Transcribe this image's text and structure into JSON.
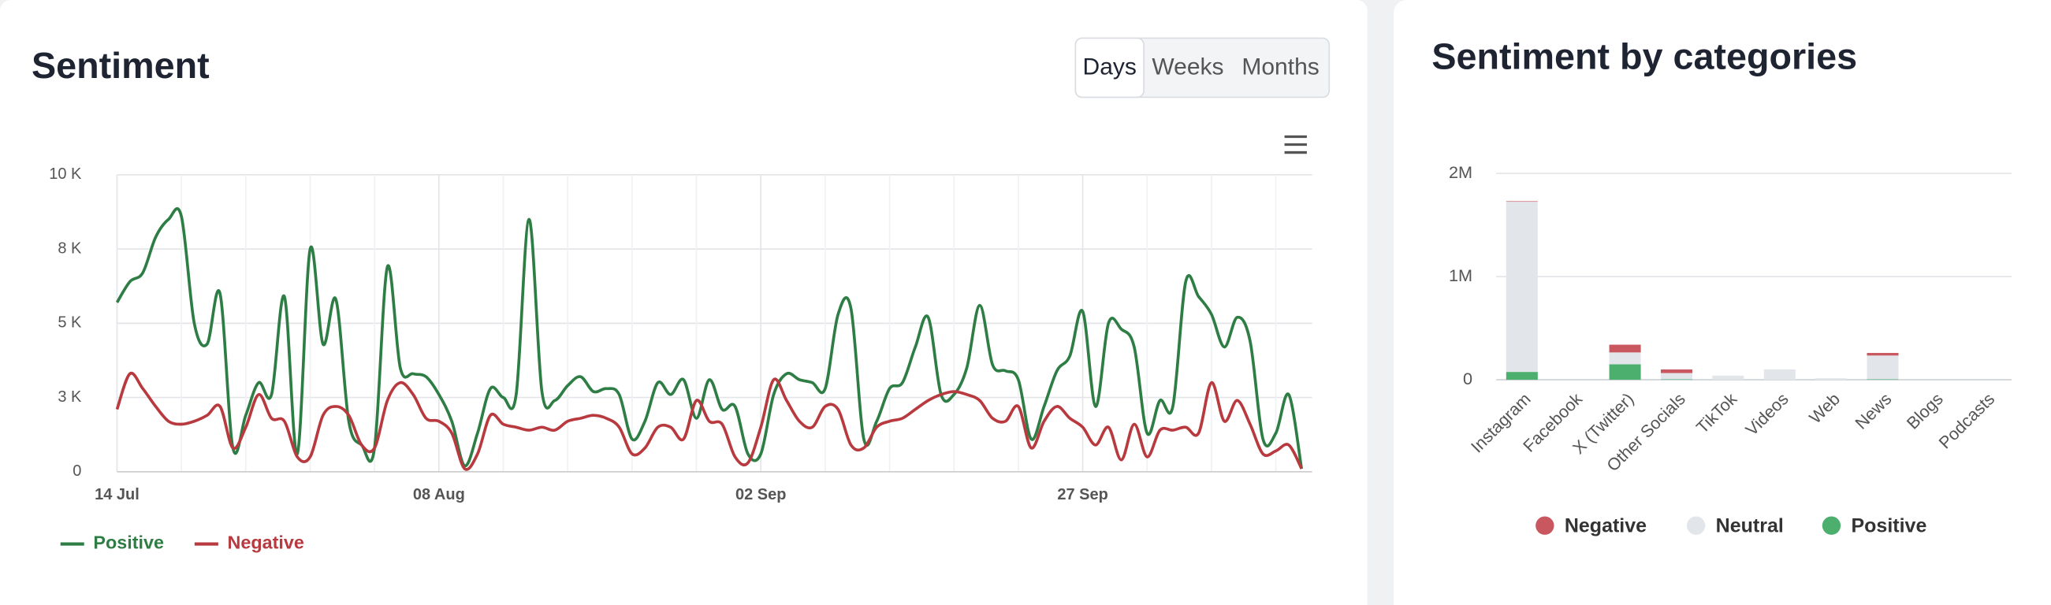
{
  "range_buttons": [
    "Days",
    "Weeks",
    "Months"
  ],
  "selected_range": "Days",
  "chart_data": [
    {
      "type": "line",
      "title": "Sentiment",
      "categories": [
        "14 Jul",
        null,
        null,
        null,
        null,
        null,
        null,
        null,
        null,
        null,
        null,
        null,
        null,
        null,
        null,
        null,
        null,
        null,
        null,
        null,
        null,
        null,
        null,
        null,
        null,
        "08 Aug",
        null,
        null,
        null,
        null,
        null,
        null,
        null,
        null,
        null,
        null,
        null,
        null,
        null,
        null,
        null,
        null,
        null,
        null,
        null,
        null,
        null,
        null,
        null,
        null,
        "02 Sep",
        null,
        null,
        null,
        null,
        null,
        null,
        null,
        null,
        null,
        null,
        null,
        null,
        null,
        null,
        null,
        null,
        null,
        null,
        null,
        null,
        null,
        null,
        null,
        null,
        "27 Sep",
        null,
        null,
        null,
        null,
        null,
        null,
        null,
        null,
        null,
        null,
        null,
        null,
        null,
        null,
        null,
        null,
        null
      ],
      "series": [
        {
          "name": "Positive",
          "color": "#2e7d44",
          "values": [
            5700,
            6400,
            6700,
            7900,
            8500,
            8600,
            5000,
            4300,
            6000,
            800,
            1900,
            3000,
            2600,
            5900,
            600,
            7500,
            4300,
            5800,
            1700,
            900,
            800,
            6900,
            3500,
            3300,
            3200,
            2600,
            1700,
            200,
            1300,
            2800,
            2500,
            2600,
            8500,
            2700,
            2400,
            2900,
            3200,
            2700,
            2800,
            2600,
            1100,
            1700,
            3000,
            2600,
            3100,
            1800,
            3100,
            2100,
            2200,
            600,
            600,
            2600,
            3300,
            3100,
            3000,
            2800,
            5300,
            5500,
            1100,
            1700,
            2800,
            3000,
            4200,
            5200,
            2600,
            2600,
            3500,
            5600,
            3600,
            3400,
            3100,
            1100,
            2200,
            3400,
            3900,
            5400,
            2200,
            5000,
            4800,
            4200,
            1300,
            2400,
            2200,
            6400,
            5900,
            5300,
            4200,
            5200,
            4400,
            1100,
            1300,
            2600,
            100
          ]
        },
        {
          "name": "Negative",
          "color": "#b83a3f",
          "values": [
            2100,
            3300,
            2800,
            2200,
            1700,
            1600,
            1700,
            1900,
            2200,
            800,
            1500,
            2600,
            1800,
            1700,
            500,
            500,
            1900,
            2200,
            1900,
            900,
            800,
            2400,
            3000,
            2600,
            1800,
            1700,
            1300,
            100,
            600,
            1900,
            1600,
            1500,
            1400,
            1500,
            1400,
            1700,
            1800,
            1900,
            1800,
            1500,
            600,
            800,
            1500,
            1500,
            1100,
            2400,
            1700,
            1600,
            500,
            300,
            1500,
            3100,
            2400,
            1700,
            1500,
            2200,
            2100,
            900,
            800,
            1500,
            1700,
            1800,
            2100,
            2400,
            2600,
            2700,
            2600,
            2400,
            1800,
            1700,
            2200,
            800,
            1700,
            2200,
            1800,
            1500,
            900,
            1500,
            400,
            1600,
            500,
            1400,
            1400,
            1500,
            1300,
            3000,
            1700,
            2400,
            1600,
            600,
            700,
            900,
            100
          ]
        }
      ],
      "ylim": [
        0,
        10000
      ],
      "yticks": [
        0,
        {
          "value": 2500,
          "label": "3 K"
        },
        {
          "value": 5000,
          "label": "5 K"
        },
        {
          "value": 7500,
          "label": "8 K"
        },
        {
          "value": 10000,
          "label": "10 K"
        }
      ],
      "grid": true
    },
    {
      "type": "bar",
      "title": "Sentiment by categories",
      "stacked": true,
      "categories": [
        "Instagram",
        "Facebook",
        "X (Twitter)",
        "Other Socials",
        "TikTok",
        "Videos",
        "Web",
        "News",
        "Blogs",
        "Podcasts"
      ],
      "series": [
        {
          "name": "Negative",
          "color": "#c9575f",
          "values": [
            5000,
            0,
            75000,
            35000,
            0,
            0,
            0,
            25000,
            0,
            0
          ]
        },
        {
          "name": "Neutral",
          "color": "#e2e6ea",
          "values": [
            1650000,
            0,
            115000,
            60000,
            40000,
            100000,
            15000,
            230000,
            0,
            0
          ]
        },
        {
          "name": "Positive",
          "color": "#4caf6e",
          "values": [
            76000,
            0,
            150000,
            5000,
            0,
            0,
            0,
            5000,
            0,
            0
          ]
        }
      ],
      "ylim": [
        0,
        2000000
      ],
      "yticks": [
        0,
        {
          "value": 1000000,
          "label": "1M"
        },
        {
          "value": 2000000,
          "label": "2M"
        }
      ],
      "grid": true
    }
  ]
}
